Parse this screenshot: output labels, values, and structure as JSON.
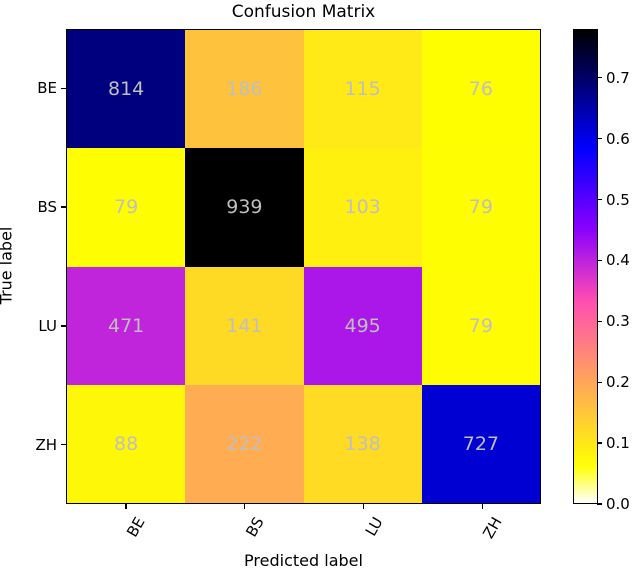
{
  "chart_data": {
    "type": "heatmap",
    "title": "Confusion Matrix",
    "xlabel": "Predicted label",
    "ylabel": "True label",
    "x_categories": [
      "BE",
      "BS",
      "LU",
      "ZH"
    ],
    "y_categories": [
      "BE",
      "BS",
      "LU",
      "ZH"
    ],
    "values": [
      [
        814,
        186,
        115,
        76
      ],
      [
        79,
        939,
        103,
        79
      ],
      [
        471,
        141,
        495,
        79
      ],
      [
        88,
        222,
        138,
        727
      ]
    ],
    "color_normalization": "row",
    "colormap": "gnuplot2_r",
    "colorbar": {
      "ticks": [
        "0.0",
        "0.1",
        "0.2",
        "0.3",
        "0.4",
        "0.5",
        "0.6",
        "0.7"
      ],
      "range": [
        0.0,
        0.78
      ]
    },
    "annotation_color": "#bfbfbf"
  }
}
